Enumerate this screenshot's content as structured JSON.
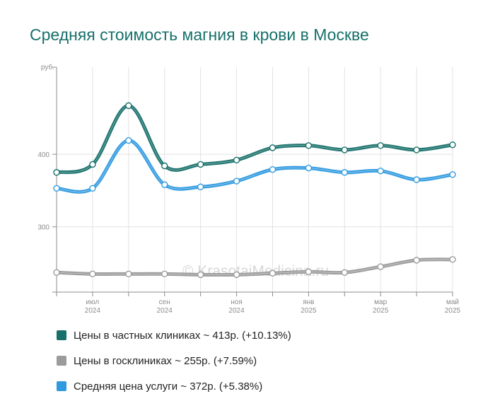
{
  "chart_data": {
    "type": "line",
    "title": "Средняя стоимость магния в крови в Москве",
    "y_unit_label": "руб.",
    "ylim": [
      210,
      520
    ],
    "yticks": [
      300,
      400
    ],
    "x": [
      "2024-06",
      "2024-07",
      "2024-08",
      "2024-09",
      "2024-10",
      "2024-11",
      "2024-12",
      "2025-01",
      "2025-02",
      "2025-03",
      "2025-04",
      "2025-05"
    ],
    "x_tick_labels": [
      {
        "month": "июл",
        "year": "2024"
      },
      {
        "month": "сен",
        "year": "2024"
      },
      {
        "month": "ноя",
        "year": "2024"
      },
      {
        "month": "янв",
        "year": "2025"
      },
      {
        "month": "мар",
        "year": "2025"
      },
      {
        "month": "май",
        "year": "2025"
      }
    ],
    "x_tick_indices": [
      1,
      3,
      5,
      7,
      9,
      11
    ],
    "grid": true,
    "legend_position": "bottom",
    "series": [
      {
        "name": "Цены в частных клиниках ~ 413р. (+10.13%)",
        "color": "#17706a",
        "values": [
          375,
          386,
          467,
          384,
          386,
          392,
          409,
          412,
          406,
          412,
          406,
          413
        ]
      },
      {
        "name": "Цены в госклиниках ~ 255р. (+7.59%)",
        "color": "#9b9b9b",
        "values": [
          237,
          235,
          235,
          235,
          234,
          234,
          236,
          238,
          237,
          245,
          254,
          255
        ]
      },
      {
        "name": "Средняя цена услуги ~ 372р. (+5.38%)",
        "color": "#2f9ae0",
        "values": [
          353,
          353,
          419,
          358,
          355,
          363,
          379,
          381,
          375,
          377,
          365,
          372
        ]
      }
    ]
  },
  "watermark": "© KrasotaiMedicina.ru"
}
